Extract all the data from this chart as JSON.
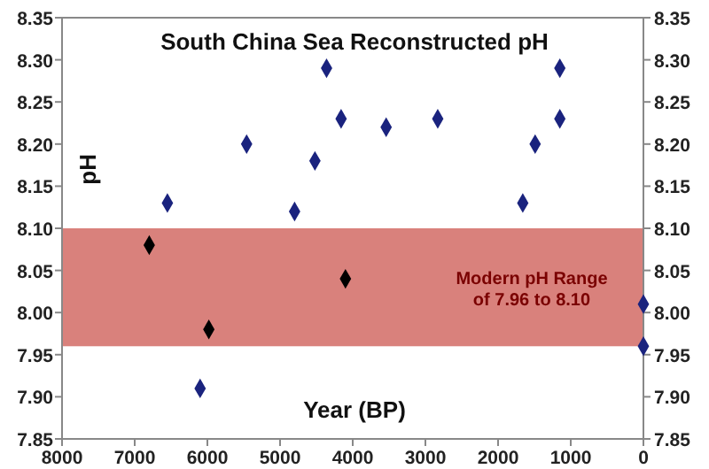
{
  "chart_data": {
    "type": "scatter",
    "title": "South China Sea Reconstructed pH",
    "xlabel": "Year (BP)",
    "ylabel": "pH",
    "xlim": [
      8000,
      0
    ],
    "xticks": [
      8000,
      7000,
      6000,
      5000,
      4000,
      3000,
      2000,
      1000,
      0
    ],
    "ylim": [
      7.85,
      8.35
    ],
    "yticks": [
      7.85,
      {
        "value": 7.9,
        "label": "7.90"
      },
      7.95,
      {
        "value": 8,
        "label": "8.00"
      },
      8.05,
      {
        "value": 8.1,
        "label": "8.10"
      },
      8.15,
      {
        "value": 8.2,
        "label": "8.20"
      },
      8.25,
      {
        "value": 8.3,
        "label": "8.30"
      },
      8.35
    ],
    "y2lim": [
      7.85,
      8.35
    ],
    "y2ticks": [
      7.85,
      {
        "value": 7.9,
        "label": "7.90"
      },
      7.95,
      {
        "value": 8,
        "label": "8.00"
      },
      8.05,
      {
        "value": 8.1,
        "label": "8.10"
      },
      8.15,
      {
        "value": 8.2,
        "label": "8.20"
      },
      8.25,
      {
        "value": 8.3,
        "label": "8.30"
      },
      8.35
    ],
    "marker": "diamond",
    "grid": false,
    "bands": [
      {
        "axis": "y",
        "from": 7.96,
        "to": 8.1,
        "label": "Modern pH Range of 7.96 to 8.10",
        "color": "#d9817c"
      }
    ],
    "series": [
      {
        "x": [
          6800,
          6550,
          6100,
          5980,
          5460,
          4800,
          4520,
          4360,
          4160,
          4100,
          3540,
          2830,
          1660,
          1490,
          1150,
          1150,
          0,
          0
        ],
        "values": [
          8.08,
          8.13,
          7.91,
          7.98,
          8.2,
          8.12,
          8.18,
          8.29,
          8.23,
          8.04,
          8.22,
          8.23,
          8.13,
          8.2,
          8.29,
          8.23,
          8.01,
          7.96
        ],
        "colors": [
          "#000000",
          "#1a237e",
          "#1a237e",
          "#000000",
          "#1a237e",
          "#1a237e",
          "#1a237e",
          "#1a237e",
          "#1a237e",
          "#000000",
          "#1a237e",
          "#1a237e",
          "#1a237e",
          "#1a237e",
          "#1a237e",
          "#1a237e",
          "#1a237e",
          "#1a237e"
        ]
      }
    ]
  }
}
